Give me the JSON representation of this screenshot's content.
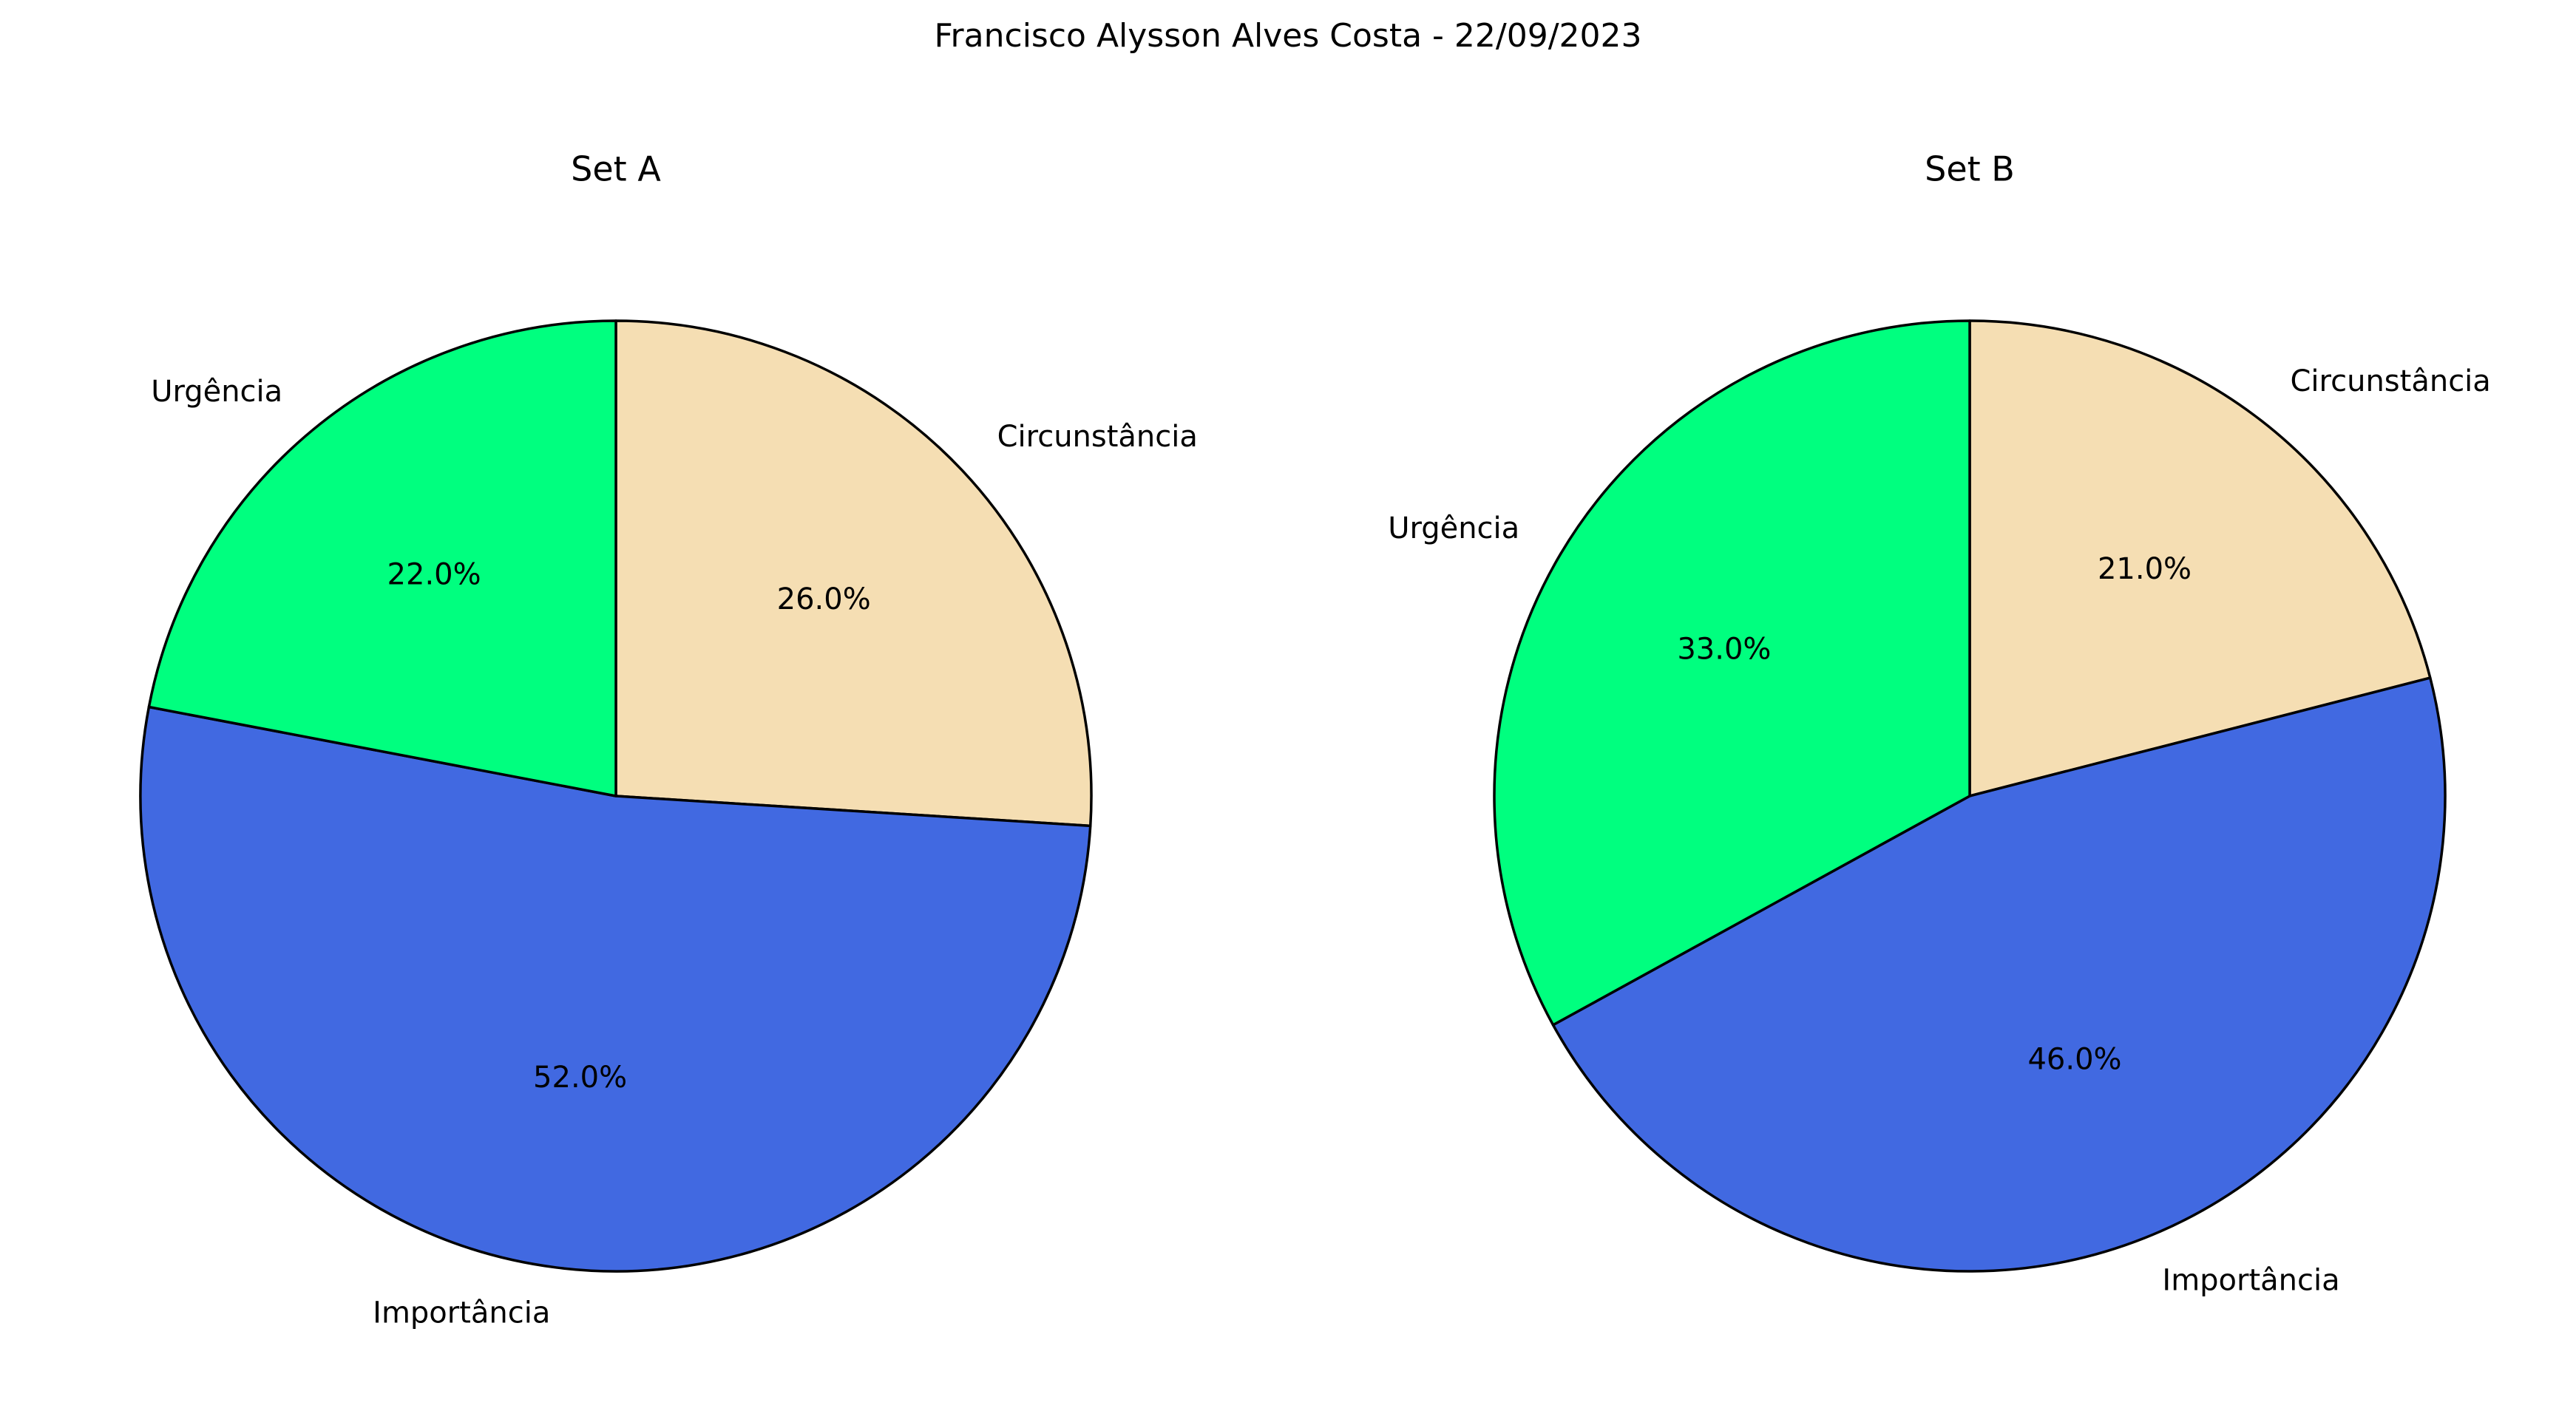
{
  "figure": {
    "title": "Francisco Alysson Alves Costa - 22/09/2023"
  },
  "chart_data": [
    {
      "type": "pie",
      "title": "Set A",
      "labels": [
        "Circunstância",
        "Importância",
        "Urgência"
      ],
      "values": [
        26.0,
        52.0,
        22.0
      ],
      "value_labels": [
        "26.0%",
        "52.0%",
        "22.0%"
      ],
      "colors": [
        "#F5DEB3",
        "#4169E1",
        "#00FF7F"
      ],
      "start_angle_deg": 90,
      "direction": "clockwise",
      "edge_color": "#000000"
    },
    {
      "type": "pie",
      "title": "Set B",
      "labels": [
        "Circunstância",
        "Importância",
        "Urgência"
      ],
      "values": [
        21.0,
        46.0,
        33.0
      ],
      "value_labels": [
        "21.0%",
        "46.0%",
        "33.0%"
      ],
      "colors": [
        "#F5DEB3",
        "#4169E1",
        "#00FF7F"
      ],
      "start_angle_deg": 90,
      "direction": "clockwise",
      "edge_color": "#000000"
    }
  ]
}
